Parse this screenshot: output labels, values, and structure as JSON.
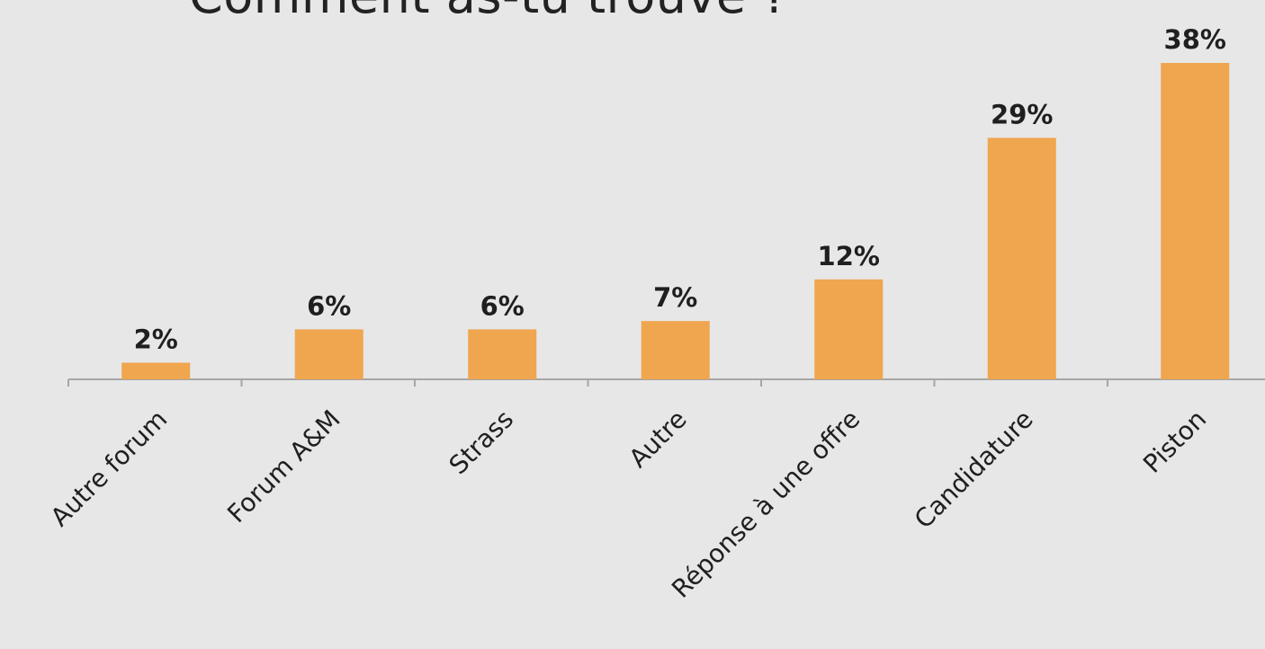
{
  "chart_data": {
    "type": "bar",
    "title": "Comment as-tu trouvé ?",
    "xlabel": "",
    "ylabel": "",
    "categories": [
      "Autre forum",
      "Forum A&M",
      "Strass",
      "Autre",
      "Réponse à une offre",
      "Candidature",
      "Piston"
    ],
    "values": [
      2,
      6,
      6,
      7,
      12,
      29,
      38
    ],
    "data_labels": [
      "2%",
      "6%",
      "6%",
      "7%",
      "12%",
      "29%",
      "38%"
    ],
    "ylim": [
      0,
      40
    ],
    "grid": false,
    "legend": "none",
    "bar_color": "#f0a54f",
    "axis_color": "#a6a6a6"
  }
}
